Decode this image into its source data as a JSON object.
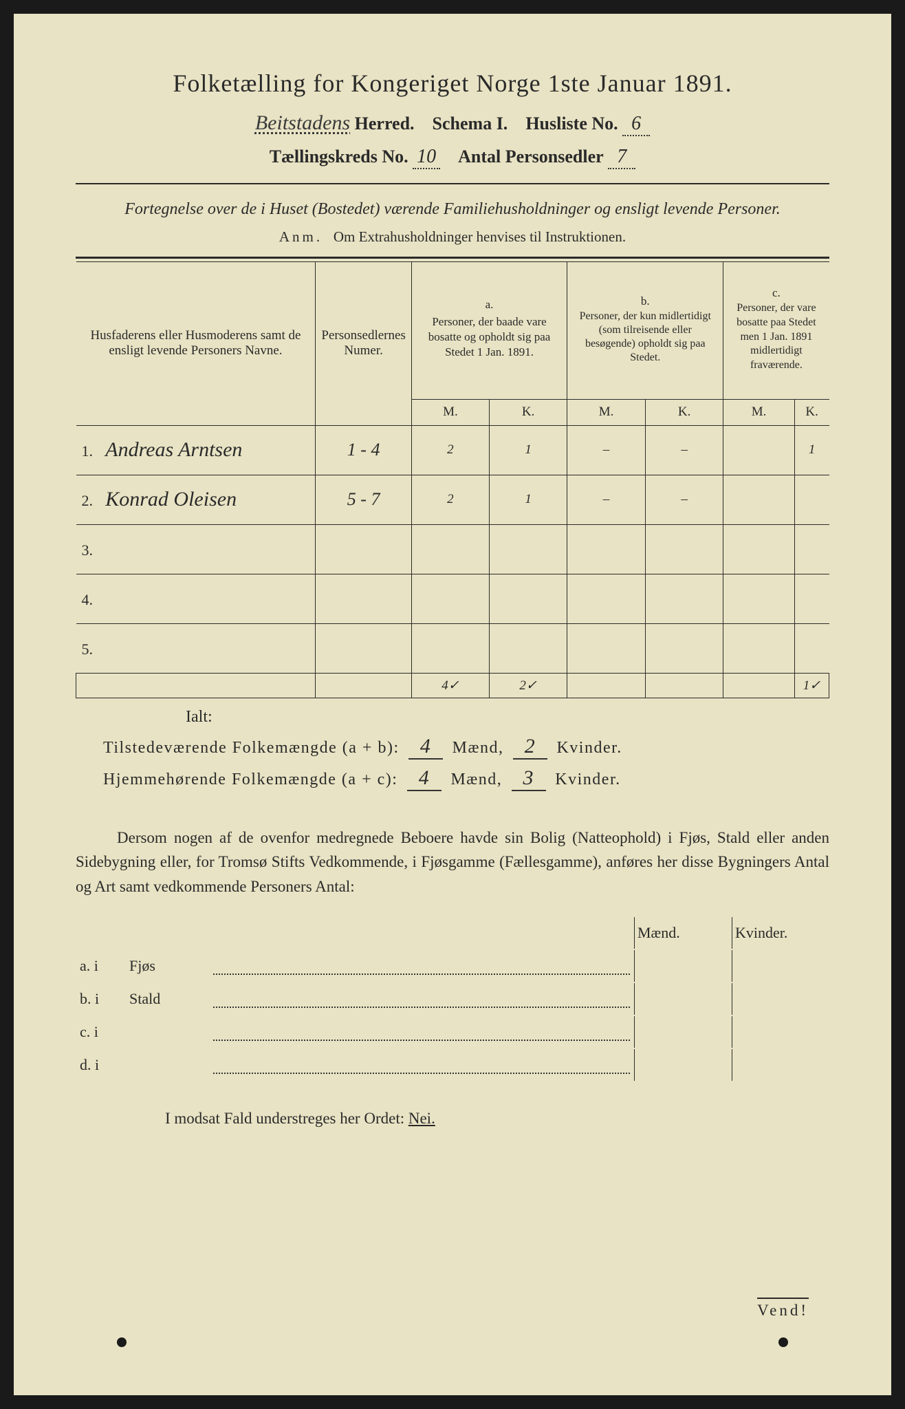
{
  "title": "Folketælling for Kongeriget Norge 1ste Januar 1891.",
  "header": {
    "herred_hw": "Beitstadens",
    "herred_label": "Herred.",
    "schema_label": "Schema I.",
    "husliste_label": "Husliste No.",
    "husliste_no": "6",
    "tkreds_label": "Tællingskreds No.",
    "tkreds_no": "10",
    "antal_label": "Antal Personsedler",
    "antal_no": "7"
  },
  "subtitle": "Fortegnelse over de i Huset (Bostedet) værende Familiehusholdninger og ensligt levende Personer.",
  "anm_label": "Anm.",
  "anm_text": "Om Extrahusholdninger henvises til Instruktionen.",
  "table": {
    "col_names": "Husfaderens eller Husmoderens samt de ensligt levende Personers Navne.",
    "col_psn": "Personsedlernes Numer.",
    "col_a_letter": "a.",
    "col_a": "Personer, der baade vare bosatte og opholdt sig paa Stedet 1 Jan. 1891.",
    "col_b_letter": "b.",
    "col_b": "Personer, der kun midlertidigt (som tilreisende eller besøgende) opholdt sig paa Stedet.",
    "col_c_letter": "c.",
    "col_c": "Personer, der vare bosatte paa Stedet men 1 Jan. 1891 midlertidigt fraværende.",
    "m": "M.",
    "k": "K.",
    "rows": [
      {
        "n": "1.",
        "name": "Andreas Arntsen",
        "psn": "1 - 4",
        "am": "2",
        "ak": "1",
        "bm": "–",
        "bk": "–",
        "cm": "",
        "ck": "1"
      },
      {
        "n": "2.",
        "name": "Konrad Oleisen",
        "psn": "5 - 7",
        "am": "2",
        "ak": "1",
        "bm": "–",
        "bk": "–",
        "cm": "",
        "ck": ""
      },
      {
        "n": "3.",
        "name": "",
        "psn": "",
        "am": "",
        "ak": "",
        "bm": "",
        "bk": "",
        "cm": "",
        "ck": ""
      },
      {
        "n": "4.",
        "name": "",
        "psn": "",
        "am": "",
        "ak": "",
        "bm": "",
        "bk": "",
        "cm": "",
        "ck": ""
      },
      {
        "n": "5.",
        "name": "",
        "psn": "",
        "am": "",
        "ak": "",
        "bm": "",
        "bk": "",
        "cm": "",
        "ck": ""
      }
    ],
    "totals": {
      "am": "4✓",
      "ak": "2✓",
      "ck": "1✓"
    }
  },
  "ialt": "Ialt:",
  "summary": {
    "line1_label": "Tilstedeværende Folkemængde (a + b):",
    "line1_m": "4",
    "line1_k": "2",
    "line2_label": "Hjemmehørende Folkemængde (a + c):",
    "line2_m": "4",
    "line2_k": "3",
    "maend": "Mænd,",
    "kvinder": "Kvinder."
  },
  "paragraph": "Dersom nogen af de ovenfor medregnede Beboere havde sin Bolig (Natteophold) i Fjøs, Stald eller anden Sidebygning eller, for Tromsø Stifts Vedkommende, i Fjøsgamme (Fællesgamme), anføres her disse Bygningers Antal og Art samt vedkommende Personers Antal:",
  "btable": {
    "maend": "Mænd.",
    "kvinder": "Kvinder.",
    "rows": [
      {
        "lbl": "a.  i",
        "name": "Fjøs"
      },
      {
        "lbl": "b.  i",
        "name": "Stald"
      },
      {
        "lbl": "c.  i",
        "name": ""
      },
      {
        "lbl": "d.  i",
        "name": ""
      }
    ]
  },
  "nei_line_pre": "I modsat Fald understreges her Ordet: ",
  "nei_word": "Nei.",
  "vend": "Vend!",
  "colors": {
    "paper": "#e8e3c4",
    "ink": "#2a2a2a",
    "bg": "#1a1a1a"
  }
}
